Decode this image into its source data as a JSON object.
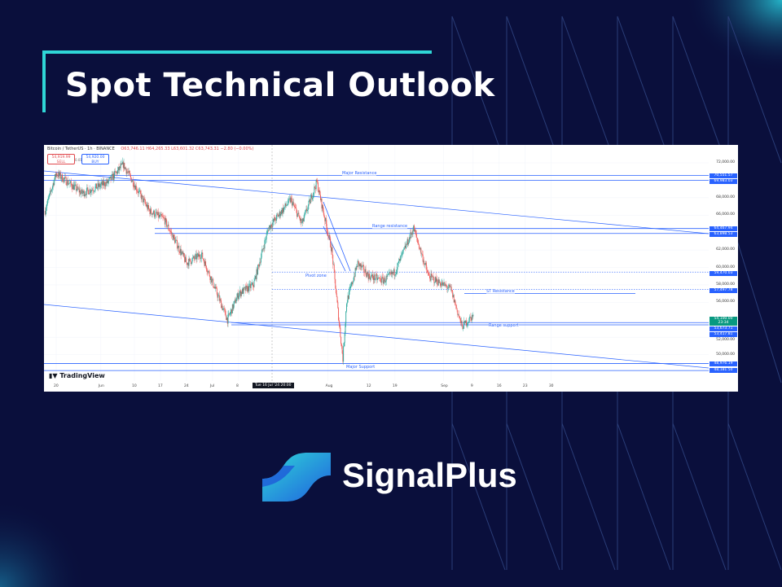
{
  "title": "Spot Technical Outlook",
  "brand": {
    "name": "SignalPlus",
    "accent": "#2fd6d6",
    "background": "#0a0f3c"
  },
  "chart": {
    "symbol": "Bitcoin / TetherUS · 1h · BINANCE",
    "ohlc": "O63,746.11 H64,265.33 L63,601.32 C63,743.31 −2.80 (−0.00%)",
    "sell_price": "54,919.99",
    "sell_label": "SELL",
    "buy_price": "54,920.00",
    "buy_label": "BUY",
    "spread": "0.01",
    "watermark": "TradingView",
    "crosshair_date": "Tue 16 Jul '24  20:00"
  },
  "chart_data": {
    "type": "candlestick",
    "ylim": [
      47500,
      72500
    ],
    "y_ticks": [
      "72,000.00",
      "68,000.00",
      "66,000.00",
      "62,000.00",
      "60,000.00",
      "58,000.00",
      "56,000.00",
      "52,000.00",
      "50,000.00"
    ],
    "y_tick_values": [
      72000,
      68000,
      66000,
      62000,
      60000,
      58000,
      56000,
      52000,
      50000
    ],
    "x_ticks": [
      "20",
      "Jun",
      "10",
      "17",
      "24",
      "Jul",
      "8",
      "Aug",
      "12",
      "19",
      "Sep",
      "9",
      "16",
      "23",
      "30"
    ],
    "x_tick_dates": [
      "2024-05-20",
      "2024-06-01",
      "2024-06-10",
      "2024-06-17",
      "2024-06-24",
      "2024-07-01",
      "2024-07-08",
      "2024-08-01",
      "2024-08-12",
      "2024-08-19",
      "2024-09-01",
      "2024-09-09",
      "2024-09-16",
      "2024-09-23",
      "2024-09-30"
    ],
    "x_range": [
      "2024-05-17",
      "2024-10-20"
    ],
    "price_path": [
      {
        "date": "2024-05-17",
        "close": 66500
      },
      {
        "date": "2024-05-20",
        "close": 70800
      },
      {
        "date": "2024-05-27",
        "close": 68500
      },
      {
        "date": "2024-06-03",
        "close": 69800
      },
      {
        "date": "2024-06-07",
        "close": 71800
      },
      {
        "date": "2024-06-10",
        "close": 69500
      },
      {
        "date": "2024-06-14",
        "close": 66500
      },
      {
        "date": "2024-06-18",
        "close": 65500
      },
      {
        "date": "2024-06-24",
        "close": 60500
      },
      {
        "date": "2024-06-28",
        "close": 61500
      },
      {
        "date": "2024-07-05",
        "close": 54000
      },
      {
        "date": "2024-07-08",
        "close": 57000
      },
      {
        "date": "2024-07-12",
        "close": 58000
      },
      {
        "date": "2024-07-16",
        "close": 64500
      },
      {
        "date": "2024-07-22",
        "close": 67800
      },
      {
        "date": "2024-07-25",
        "close": 65000
      },
      {
        "date": "2024-07-29",
        "close": 69800
      },
      {
        "date": "2024-08-02",
        "close": 62000
      },
      {
        "date": "2024-08-05",
        "close": 49500
      },
      {
        "date": "2024-08-06",
        "close": 56000
      },
      {
        "date": "2024-08-09",
        "close": 60500
      },
      {
        "date": "2024-08-12",
        "close": 59000
      },
      {
        "date": "2024-08-16",
        "close": 58500
      },
      {
        "date": "2024-08-19",
        "close": 59500
      },
      {
        "date": "2024-08-24",
        "close": 64500
      },
      {
        "date": "2024-08-28",
        "close": 59000
      },
      {
        "date": "2024-09-03",
        "close": 57500
      },
      {
        "date": "2024-09-06",
        "close": 53200
      },
      {
        "date": "2024-09-09",
        "close": 54500
      }
    ],
    "levels": [
      {
        "label": "Major Resistance",
        "prices": [
          70551.57,
          69983.03
        ],
        "price_tags": [
          "70,551.57",
          "69,983.03"
        ],
        "style": "solid"
      },
      {
        "label": "Range resistance",
        "prices": [
          64467.94,
          63898.53
        ],
        "price_tags": [
          "64,467.94",
          "63,898.53"
        ],
        "style": "solid"
      },
      {
        "label": "",
        "prices": [
          59470.03
        ],
        "price_tags": [
          "59,470.03"
        ],
        "style": "dotted"
      },
      {
        "label": "",
        "prices": [
          57497.78
        ],
        "price_tags": [
          "57,497.78"
        ],
        "style": "dotted"
      },
      {
        "label": "ST Resistance",
        "prices": [
          57000
        ],
        "price_tags": [],
        "style": "solid"
      },
      {
        "label": "Range support",
        "prices": [
          53673.71,
          53417.81
        ],
        "price_tags": [
          "53,673.71",
          "53,417.81"
        ],
        "style": "solid"
      },
      {
        "label": "Major Support",
        "prices": [
          48976.19,
          48181.5
        ],
        "price_tags": [
          "48,976.19",
          "48,181.50"
        ],
        "style": "solid"
      }
    ],
    "annotations": [
      "Pivot zone"
    ],
    "last_price": "54,100.00",
    "countdown": "23:34",
    "colors": {
      "up": "#26a69a",
      "down": "#ef5350",
      "levels": "#2962ff"
    }
  }
}
